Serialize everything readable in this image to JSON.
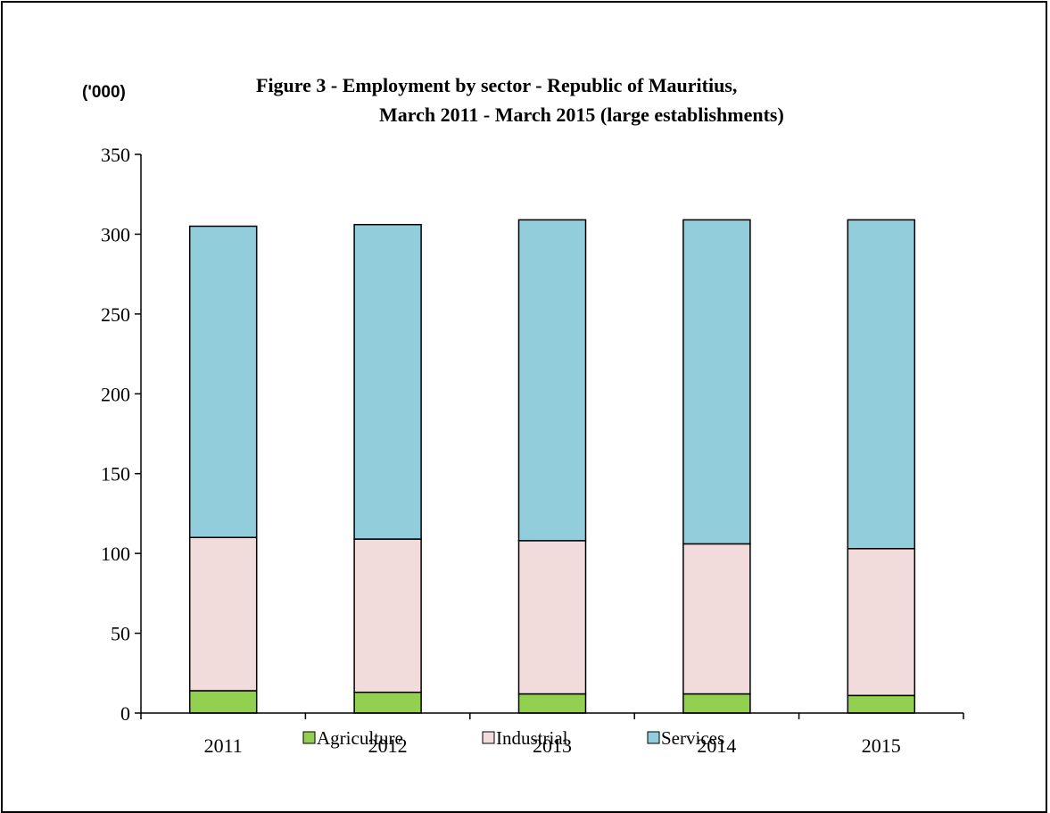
{
  "chart_data": {
    "type": "bar",
    "stacked": true,
    "title_line1": "Figure 3 - Employment by sector - Republic of Mauritius,",
    "title_line2": "March 2011 - March 2015 (large establishments)",
    "ylabel": "('000)",
    "xlabel": "",
    "ylim": [
      0,
      350
    ],
    "yticks": [
      0,
      50,
      100,
      150,
      200,
      250,
      300,
      350
    ],
    "categories": [
      "2011",
      "2012",
      "2013",
      "2014",
      "2015"
    ],
    "series": [
      {
        "name": "Agriculture",
        "color": "#92d050",
        "values": [
          14,
          13,
          12,
          12,
          11
        ]
      },
      {
        "name": "Industrial",
        "color": "#f2dcdb",
        "values": [
          96,
          96,
          96,
          94,
          92
        ]
      },
      {
        "name": "Services",
        "color": "#92cddc",
        "values": [
          195,
          197,
          201,
          203,
          206
        ]
      }
    ],
    "legend_position": "bottom",
    "grid": false
  }
}
